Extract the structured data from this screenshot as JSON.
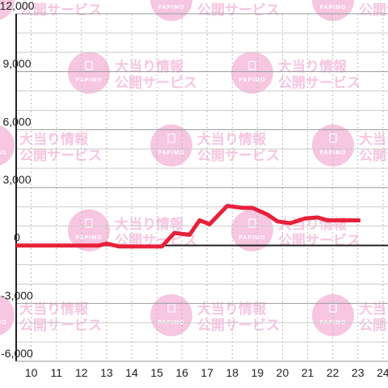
{
  "watermark": {
    "line1": "大当り情報",
    "line2": "公開サービス",
    "logo": "PAPIMO",
    "color": "#f7c6e1"
  },
  "chart_data": {
    "type": "line",
    "title": "",
    "xlabel": "",
    "ylabel": "",
    "xlim": [
      9.4,
      24.2
    ],
    "ylim": [
      -6000,
      12000
    ],
    "y_ticks": [
      12000,
      9000,
      6000,
      3000,
      0,
      -3000,
      -6000
    ],
    "y_tick_labels": [
      "12,000",
      "9,000",
      "6,000",
      "3,000",
      "0",
      "-3,000",
      "-6,000"
    ],
    "x_ticks": [
      10,
      11,
      12,
      13,
      14,
      15,
      16,
      17,
      18,
      19,
      20,
      21,
      22,
      23,
      24
    ],
    "x_tick_labels": [
      "10",
      "11",
      "12",
      "13",
      "14",
      "15",
      "16",
      "17",
      "18",
      "19",
      "20",
      "21",
      "22",
      "23",
      "24"
    ],
    "grid": true,
    "series_color": "#e8203a",
    "series": [
      {
        "x": [
          9.4,
          12.7,
          13.0,
          13.5,
          15.2,
          15.7,
          16.3,
          16.7,
          17.1,
          17.8,
          18.4,
          18.8,
          19.4,
          19.8,
          20.3,
          20.9,
          21.4,
          21.8,
          22.5,
          23.1
        ],
        "y": [
          0,
          0,
          100,
          -50,
          -50,
          650,
          550,
          1300,
          1100,
          2050,
          1950,
          1950,
          1600,
          1250,
          1150,
          1400,
          1450,
          1300,
          1300,
          1300
        ]
      }
    ]
  }
}
